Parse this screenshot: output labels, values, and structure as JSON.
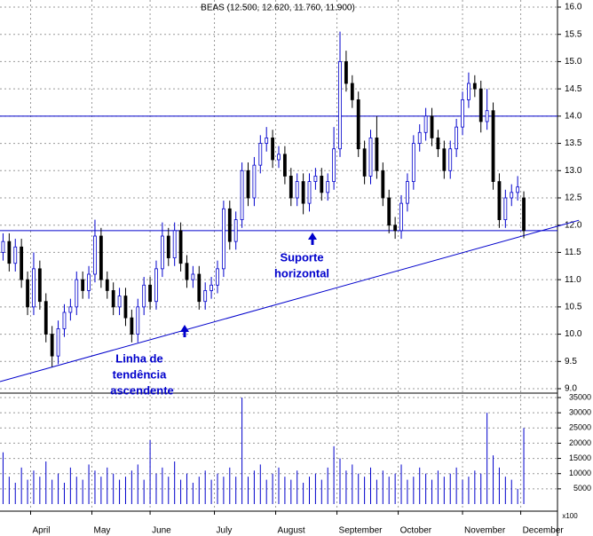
{
  "chart_data": {
    "type": "candlestick",
    "title": "BEAS (12.500, 12.620, 11.760, 11.900)",
    "xlim": [
      0,
      182
    ],
    "xticks": [
      {
        "value": 10,
        "label": "April"
      },
      {
        "value": 30,
        "label": "May"
      },
      {
        "value": 49,
        "label": "June"
      },
      {
        "value": 70,
        "label": "July"
      },
      {
        "value": 90,
        "label": "August"
      },
      {
        "value": 110,
        "label": "September"
      },
      {
        "value": 130,
        "label": "October"
      },
      {
        "value": 151,
        "label": "November"
      },
      {
        "value": 170,
        "label": "December"
      }
    ],
    "ylim": [
      9.0,
      16.0
    ],
    "yticks": [
      {
        "value": 9.0,
        "label": "9.0"
      },
      {
        "value": 9.5,
        "label": "9.5"
      },
      {
        "value": 10.0,
        "label": "10.0"
      },
      {
        "value": 10.5,
        "label": "10.5"
      },
      {
        "value": 11.0,
        "label": "11.0"
      },
      {
        "value": 11.5,
        "label": "11.5"
      },
      {
        "value": 12.0,
        "label": "12.0"
      },
      {
        "value": 12.5,
        "label": "12.5"
      },
      {
        "value": 13.0,
        "label": "13.0"
      },
      {
        "value": 13.5,
        "label": "13.5"
      },
      {
        "value": 14.0,
        "label": "14.0"
      },
      {
        "value": 14.5,
        "label": "14.5"
      },
      {
        "value": 15.0,
        "label": "15.0"
      },
      {
        "value": 15.5,
        "label": "15.5"
      },
      {
        "value": 16.0,
        "label": "16.0"
      }
    ],
    "grid": true,
    "up_color": "#0000cc",
    "down_color": "#000000",
    "line_color": "#0000cc",
    "x": [
      1,
      3,
      5,
      7,
      9,
      11,
      13,
      15,
      17,
      19,
      21,
      23,
      25,
      27,
      29,
      31,
      33,
      35,
      37,
      39,
      41,
      43,
      45,
      47,
      49,
      51,
      53,
      55,
      57,
      59,
      61,
      63,
      65,
      67,
      69,
      71,
      73,
      75,
      77,
      79,
      81,
      83,
      85,
      87,
      89,
      91,
      93,
      95,
      97,
      99,
      101,
      103,
      105,
      107,
      109,
      111,
      113,
      115,
      117,
      119,
      121,
      123,
      125,
      127,
      129,
      131,
      133,
      135,
      137,
      139,
      141,
      143,
      145,
      147,
      149,
      151,
      153,
      155,
      157,
      159,
      161,
      163,
      165,
      167,
      169,
      171
    ],
    "open": [
      11.5,
      11.7,
      11.3,
      11.6,
      11.0,
      10.5,
      11.2,
      10.6,
      10.0,
      9.6,
      10.1,
      10.4,
      10.5,
      11.0,
      10.8,
      11.1,
      11.8,
      11.0,
      10.8,
      10.5,
      10.7,
      10.3,
      10.0,
      10.5,
      10.9,
      10.6,
      11.2,
      11.8,
      11.4,
      11.9,
      11.3,
      11.0,
      11.1,
      10.6,
      10.8,
      10.9,
      11.2,
      12.3,
      11.7,
      12.1,
      13.0,
      12.5,
      13.1,
      13.5,
      13.6,
      13.2,
      13.3,
      12.9,
      12.5,
      12.8,
      12.4,
      12.8,
      12.9,
      12.6,
      12.8,
      13.4,
      15.0,
      14.6,
      14.3,
      13.4,
      12.9,
      13.6,
      13.0,
      12.5,
      12.0,
      11.9,
      12.4,
      12.8,
      13.5,
      13.7,
      14.0,
      13.6,
      13.4,
      13.0,
      13.4,
      13.8,
      14.3,
      14.6,
      14.5,
      13.9,
      14.1,
      12.8,
      12.1,
      12.5,
      12.6,
      12.5
    ],
    "high": [
      11.85,
      11.85,
      11.75,
      11.75,
      11.15,
      11.5,
      11.35,
      10.75,
      10.15,
      10.25,
      10.55,
      10.65,
      11.15,
      11.15,
      11.25,
      12.1,
      11.95,
      11.15,
      10.95,
      10.85,
      10.85,
      10.45,
      10.65,
      11.05,
      11.05,
      11.35,
      12.05,
      11.95,
      12.05,
      12.05,
      11.45,
      11.25,
      11.25,
      10.95,
      11.05,
      11.35,
      12.45,
      12.45,
      12.25,
      13.15,
      13.15,
      13.25,
      13.65,
      13.8,
      13.75,
      13.45,
      13.45,
      13.05,
      12.95,
      12.95,
      12.95,
      13.05,
      13.05,
      12.95,
      13.8,
      15.55,
      15.2,
      14.75,
      14.45,
      13.55,
      13.75,
      14.0,
      13.15,
      12.65,
      12.15,
      12.55,
      12.95,
      13.65,
      13.85,
      14.15,
      14.15,
      13.75,
      13.55,
      13.55,
      13.95,
      14.45,
      14.8,
      14.75,
      14.65,
      14.5,
      14.25,
      12.95,
      12.65,
      12.75,
      12.9,
      12.62
    ],
    "low": [
      11.35,
      11.15,
      11.15,
      10.85,
      10.35,
      10.35,
      10.45,
      9.85,
      9.4,
      9.45,
      9.95,
      10.25,
      10.35,
      10.65,
      10.65,
      10.95,
      10.85,
      10.65,
      10.35,
      10.35,
      10.15,
      9.85,
      9.85,
      10.35,
      10.45,
      10.45,
      11.05,
      11.25,
      11.25,
      11.15,
      10.85,
      10.85,
      10.45,
      10.45,
      10.65,
      10.75,
      11.05,
      11.55,
      11.55,
      11.95,
      12.35,
      12.35,
      12.95,
      13.35,
      13.05,
      13.05,
      12.75,
      12.35,
      12.35,
      12.2,
      12.25,
      12.65,
      12.45,
      12.45,
      12.65,
      13.25,
      14.45,
      14.15,
      13.25,
      12.75,
      12.75,
      12.85,
      12.35,
      11.85,
      11.75,
      11.75,
      12.25,
      12.65,
      13.35,
      13.55,
      13.45,
      13.25,
      12.85,
      12.85,
      13.25,
      13.65,
      14.15,
      14.35,
      13.7,
      13.75,
      12.65,
      11.95,
      11.95,
      12.35,
      12.45,
      11.76
    ],
    "close": [
      11.7,
      11.3,
      11.6,
      11.0,
      10.5,
      11.2,
      10.6,
      10.0,
      9.6,
      10.1,
      10.4,
      10.5,
      11.0,
      10.8,
      11.1,
      11.8,
      11.0,
      10.8,
      10.5,
      10.7,
      10.3,
      10.0,
      10.5,
      10.9,
      10.6,
      11.2,
      11.8,
      11.4,
      11.9,
      11.3,
      11.0,
      11.1,
      10.6,
      10.8,
      10.9,
      11.2,
      12.3,
      11.7,
      12.1,
      13.0,
      12.5,
      13.1,
      13.5,
      13.6,
      13.2,
      13.3,
      12.9,
      12.5,
      12.8,
      12.4,
      12.8,
      12.9,
      12.6,
      12.8,
      13.4,
      15.0,
      14.6,
      14.3,
      13.4,
      12.9,
      13.6,
      13.0,
      12.5,
      12.0,
      11.9,
      12.4,
      12.8,
      13.5,
      13.7,
      14.0,
      13.6,
      13.4,
      13.0,
      13.4,
      13.8,
      14.3,
      14.6,
      14.5,
      13.9,
      14.1,
      12.8,
      12.1,
      12.5,
      12.6,
      12.7,
      11.9
    ],
    "volume": [
      17000,
      9000,
      7000,
      12000,
      8000,
      11000,
      9000,
      14000,
      8000,
      10000,
      7000,
      12000,
      9000,
      8000,
      13000,
      11000,
      9000,
      12000,
      10000,
      8000,
      9000,
      11000,
      13000,
      8000,
      21000,
      10000,
      12000,
      9000,
      14000,
      8000,
      10000,
      7000,
      9000,
      11000,
      8000,
      10000,
      9000,
      12000,
      9000,
      35000,
      9000,
      11000,
      13000,
      8000,
      10000,
      12000,
      9000,
      8000,
      11000,
      7000,
      9000,
      10000,
      8000,
      12000,
      19000,
      15000,
      11000,
      13000,
      10000,
      9000,
      12000,
      8000,
      11000,
      9000,
      10000,
      13000,
      8000,
      9000,
      12000,
      10000,
      8000,
      11000,
      9000,
      10000,
      12000,
      8000,
      9000,
      11000,
      10000,
      30000,
      16000,
      12000,
      9000,
      8000,
      5000,
      25000
    ],
    "volume_color": "#0000cc",
    "volume_ylim": [
      0,
      35000
    ],
    "volume_yticks": [
      5000,
      10000,
      15000,
      20000,
      25000,
      30000,
      35000
    ],
    "volume_unit": "x100",
    "hlines": [
      14.0,
      11.9
    ],
    "trendline": {
      "x": [
        0,
        189
      ],
      "y": [
        9.13,
        12.09
      ]
    },
    "annotations": [
      {
        "lines": [
          "Suporte",
          "horizontal"
        ]
      },
      {
        "lines": [
          "Linha de",
          "tendência",
          "ascendente"
        ]
      }
    ]
  }
}
